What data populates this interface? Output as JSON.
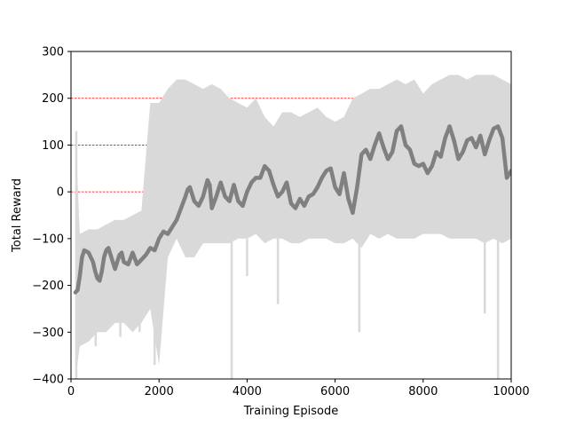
{
  "chart_data": {
    "type": "line",
    "title": "",
    "xlabel": "Training Episode",
    "ylabel": "Total Reward",
    "xlim": [
      0,
      10000
    ],
    "ylim": [
      -400,
      300
    ],
    "xticks": [
      0,
      2000,
      4000,
      6000,
      8000,
      10000
    ],
    "yticks": [
      -400,
      -300,
      -200,
      -100,
      0,
      100,
      200,
      300
    ],
    "xtick_labels": [
      "0",
      "2000",
      "4000",
      "6000",
      "8000",
      "10000"
    ],
    "ytick_labels": [
      "−400",
      "−300",
      "−200",
      "−100",
      "0",
      "100",
      "200",
      "300"
    ],
    "reference_lines": [
      {
        "y": 200,
        "color": "#ff0000",
        "style": "dashed"
      },
      {
        "y": 100,
        "color": "#ff0000",
        "style": "dashed"
      },
      {
        "y": 0,
        "color": "#ff0000",
        "style": "dashed"
      }
    ],
    "series": [
      {
        "role": "raw-episode-reward",
        "color": "#d9d9d9",
        "band": {
          "x": [
            100,
            200,
            400,
            600,
            800,
            1000,
            1200,
            1400,
            1600,
            1800,
            2000,
            2200,
            2400,
            2600,
            2800,
            3000,
            3200,
            3400,
            3600,
            3800,
            4000,
            4200,
            4400,
            4600,
            4800,
            5000,
            5200,
            5400,
            5600,
            5800,
            6000,
            6200,
            6400,
            6600,
            6800,
            7000,
            7200,
            7400,
            7600,
            7800,
            8000,
            8200,
            8400,
            8600,
            8800,
            9000,
            9200,
            9400,
            9600,
            9800,
            10000
          ],
          "upper": [
            130,
            -90,
            -80,
            -80,
            -70,
            -60,
            -60,
            -50,
            -40,
            190,
            190,
            220,
            240,
            240,
            230,
            220,
            230,
            220,
            200,
            190,
            180,
            200,
            160,
            140,
            170,
            170,
            160,
            170,
            180,
            160,
            150,
            160,
            200,
            210,
            220,
            220,
            230,
            240,
            230,
            240,
            210,
            230,
            240,
            250,
            250,
            240,
            250,
            250,
            250,
            240,
            230
          ],
          "lower": [
            -400,
            -330,
            -320,
            -300,
            -300,
            -280,
            -280,
            -300,
            -280,
            -250,
            -370,
            -140,
            -100,
            -140,
            -140,
            -110,
            -110,
            -110,
            -110,
            -100,
            -100,
            -90,
            -110,
            -100,
            -100,
            -110,
            -110,
            -100,
            -100,
            -100,
            -110,
            -110,
            -100,
            -120,
            -90,
            -100,
            -90,
            -100,
            -100,
            -100,
            -90,
            -90,
            -90,
            -100,
            -100,
            -100,
            -100,
            -110,
            -100,
            -110,
            -100
          ]
        },
        "spikes": [
          {
            "x": 120,
            "from": -400,
            "to": 130
          },
          {
            "x": 560,
            "from": -220,
            "to": -330
          },
          {
            "x": 1120,
            "from": -200,
            "to": -310
          },
          {
            "x": 1560,
            "from": -160,
            "to": -300
          },
          {
            "x": 1900,
            "from": -150,
            "to": -370
          },
          {
            "x": 3650,
            "from": -100,
            "to": -400
          },
          {
            "x": 4000,
            "from": -100,
            "to": -180
          },
          {
            "x": 4700,
            "from": -100,
            "to": -240
          },
          {
            "x": 6550,
            "from": -100,
            "to": -300
          },
          {
            "x": 9400,
            "from": -100,
            "to": -260
          },
          {
            "x": 9700,
            "from": -100,
            "to": -400
          }
        ]
      },
      {
        "role": "moving-average",
        "color": "#808080",
        "x": [
          100,
          150,
          200,
          250,
          300,
          400,
          500,
          550,
          600,
          650,
          700,
          750,
          800,
          850,
          900,
          1000,
          1100,
          1150,
          1200,
          1300,
          1400,
          1500,
          1600,
          1700,
          1800,
          1900,
          2000,
          2100,
          2200,
          2300,
          2400,
          2500,
          2600,
          2650,
          2700,
          2800,
          2900,
          3000,
          3100,
          3150,
          3200,
          3300,
          3400,
          3500,
          3600,
          3700,
          3800,
          3900,
          4000,
          4100,
          4200,
          4300,
          4400,
          4500,
          4600,
          4700,
          4800,
          4900,
          5000,
          5100,
          5200,
          5300,
          5400,
          5500,
          5600,
          5700,
          5800,
          5900,
          6000,
          6100,
          6200,
          6300,
          6400,
          6500,
          6600,
          6700,
          6800,
          6900,
          7000,
          7100,
          7200,
          7300,
          7400,
          7500,
          7600,
          7700,
          7800,
          7900,
          8000,
          8100,
          8200,
          8300,
          8400,
          8500,
          8600,
          8700,
          8800,
          8900,
          9000,
          9100,
          9200,
          9300,
          9400,
          9500,
          9600,
          9700,
          9800,
          9900,
          10000
        ],
        "y": [
          -215,
          -210,
          -180,
          -140,
          -125,
          -130,
          -150,
          -170,
          -185,
          -190,
          -170,
          -140,
          -125,
          -120,
          -135,
          -165,
          -135,
          -130,
          -150,
          -155,
          -130,
          -155,
          -145,
          -135,
          -120,
          -125,
          -100,
          -85,
          -90,
          -75,
          -60,
          -35,
          -10,
          5,
          10,
          -20,
          -30,
          -10,
          25,
          15,
          -35,
          -10,
          20,
          -10,
          -20,
          15,
          -20,
          -30,
          0,
          20,
          30,
          30,
          55,
          45,
          15,
          -10,
          0,
          20,
          -25,
          -35,
          -15,
          -30,
          -10,
          -5,
          10,
          30,
          45,
          50,
          10,
          -5,
          40,
          -15,
          -45,
          10,
          80,
          90,
          70,
          100,
          125,
          95,
          70,
          85,
          130,
          140,
          100,
          90,
          60,
          55,
          60,
          40,
          55,
          85,
          75,
          115,
          140,
          110,
          70,
          85,
          110,
          115,
          95,
          120,
          80,
          110,
          135,
          140,
          115,
          30,
          45
        ]
      }
    ]
  }
}
